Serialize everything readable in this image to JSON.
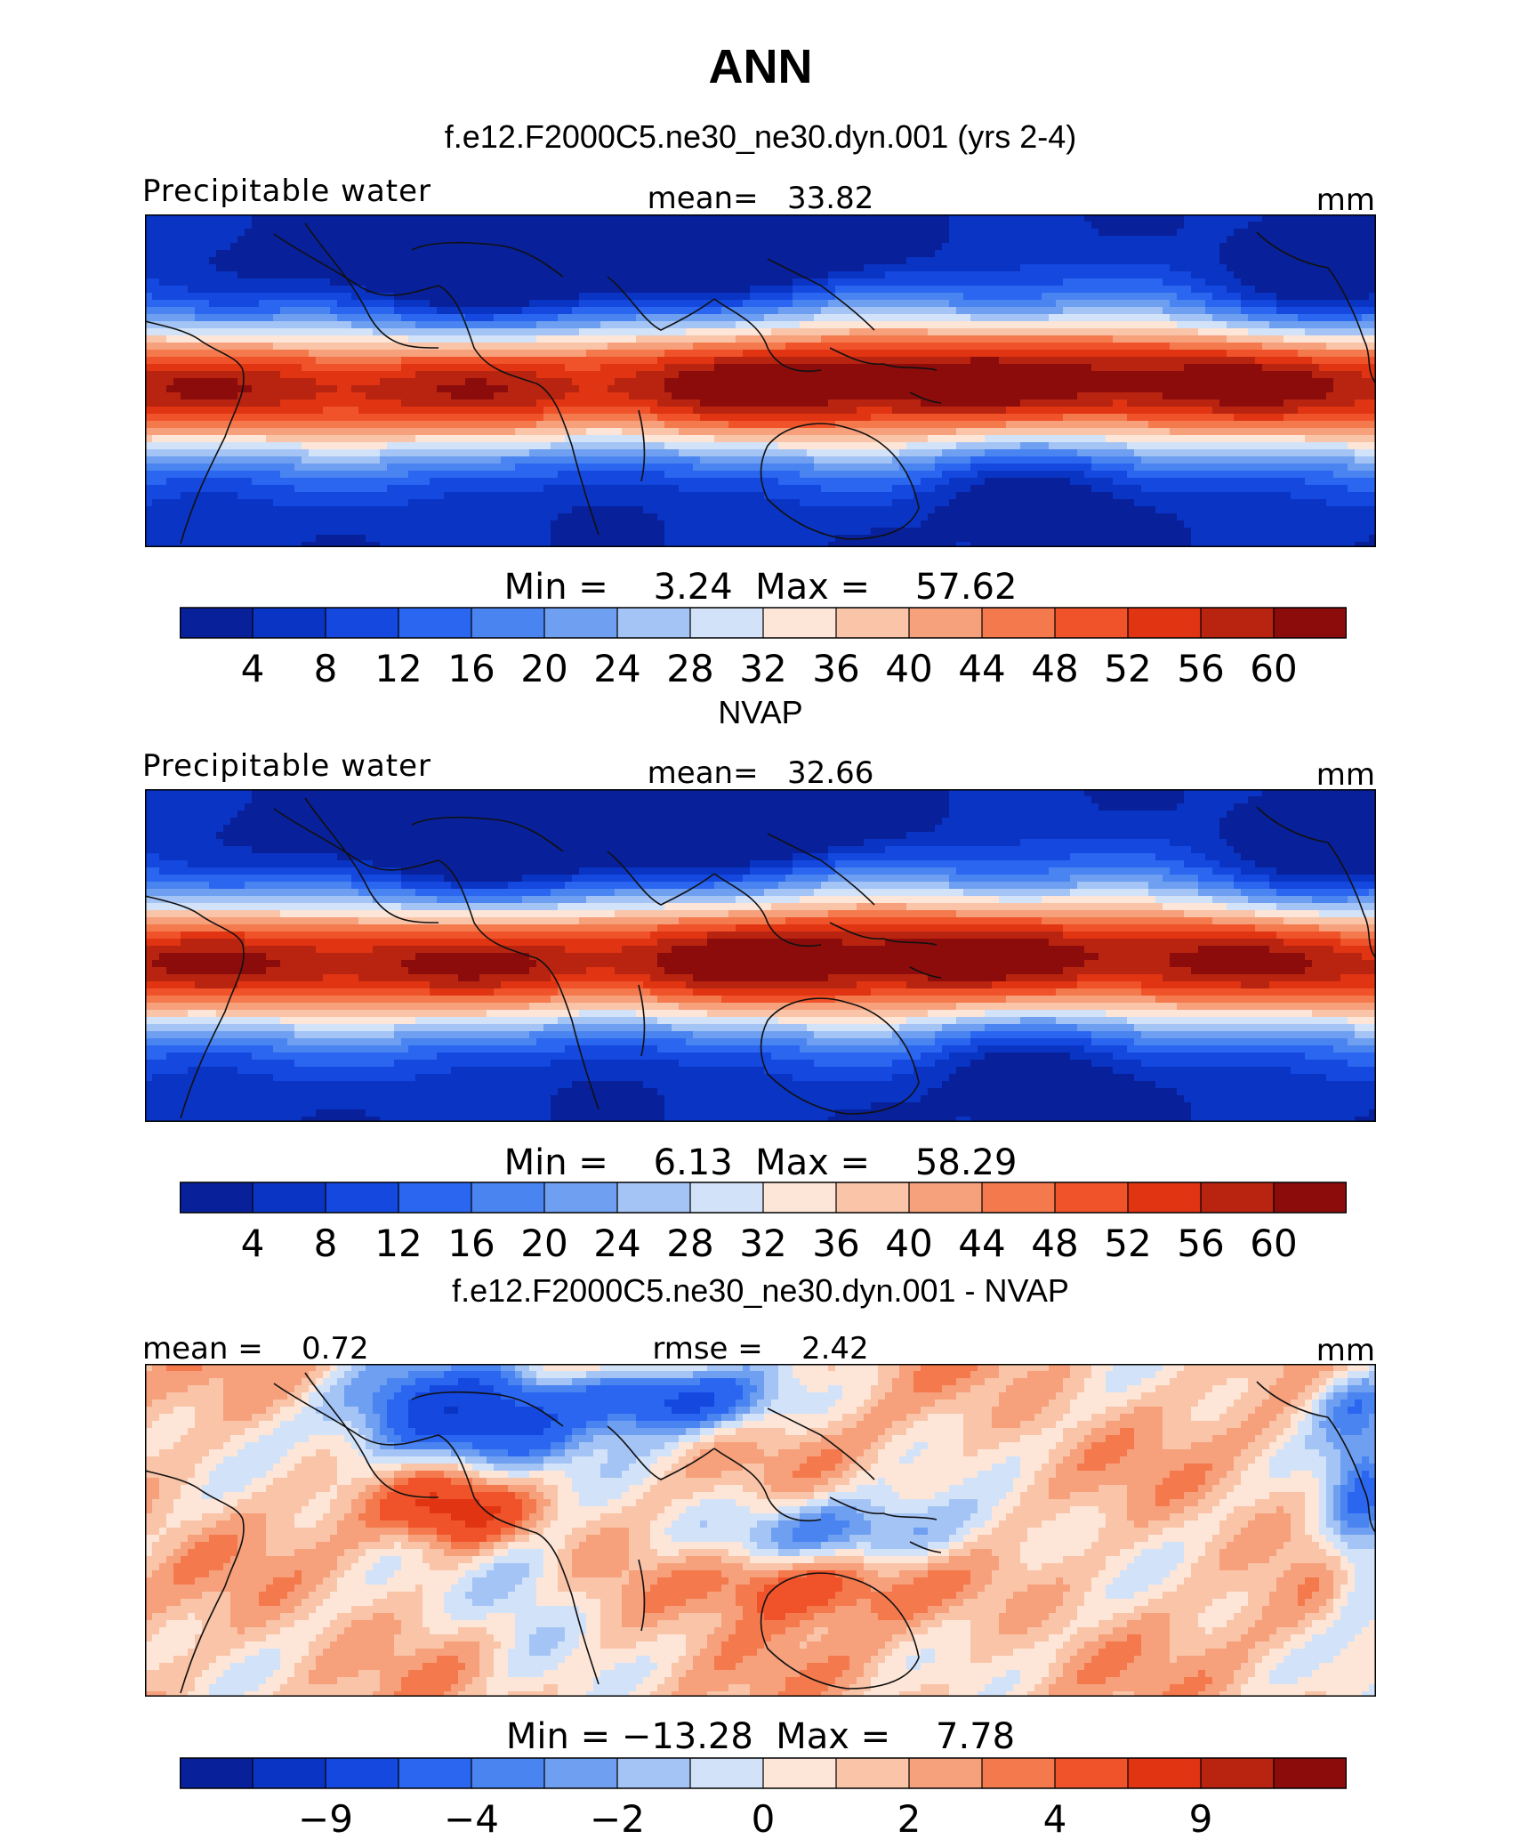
{
  "title": "ANN",
  "colors": {
    "abs_scale": [
      "#08209a",
      "#0a34c4",
      "#1448de",
      "#2a66f0",
      "#4a84f0",
      "#6e9ff0",
      "#a4c4f6",
      "#d2e2f8",
      "#fde6d8",
      "#f9c4a8",
      "#f6a07c",
      "#f47a4e",
      "#f0532a",
      "#e03412",
      "#b82410",
      "#8c0c0c"
    ],
    "diff_scale": [
      "#08209a",
      "#0a34c4",
      "#1448de",
      "#2a66f0",
      "#4a84f0",
      "#6e9ff0",
      "#a4c4f6",
      "#d2e2f8",
      "#fde6d8",
      "#f9c4a8",
      "#f6a07c",
      "#f47a4e",
      "#f0532a",
      "#e03412",
      "#b82410",
      "#8c0c0c"
    ],
    "coastline": "#111111"
  },
  "panels": [
    {
      "heading": "f.e12.F2000C5.ne30_ne30.dyn.001 (yrs 2-4)",
      "left_label": "Precipitable water",
      "center_label": "mean=   33.82",
      "right_label": "mm",
      "minmax": "Min =    3.24  Max =    57.62",
      "ticks": [
        "4",
        "8",
        "12",
        "16",
        "20",
        "24",
        "28",
        "32",
        "36",
        "40",
        "44",
        "48",
        "52",
        "56",
        "60"
      ],
      "field": "model"
    },
    {
      "heading": "NVAP",
      "left_label": "Precipitable water",
      "center_label": "mean=   32.66",
      "right_label": "mm",
      "minmax": "Min =    6.13  Max =    58.29",
      "ticks": [
        "4",
        "8",
        "12",
        "16",
        "20",
        "24",
        "28",
        "32",
        "36",
        "40",
        "44",
        "48",
        "52",
        "56",
        "60"
      ],
      "field": "obs"
    },
    {
      "heading": "f.e12.F2000C5.ne30_ne30.dyn.001 - NVAP",
      "left_label": "mean =    0.72",
      "center_label": "rmse =    2.42",
      "right_label": "mm",
      "minmax": "Min = −13.28  Max =    7.78",
      "ticks": [
        "",
        "−9",
        "",
        "−4",
        "",
        "−2",
        "",
        "0",
        "",
        "2",
        "",
        "4",
        "",
        "9",
        ""
      ],
      "field": "diff"
    }
  ]
}
